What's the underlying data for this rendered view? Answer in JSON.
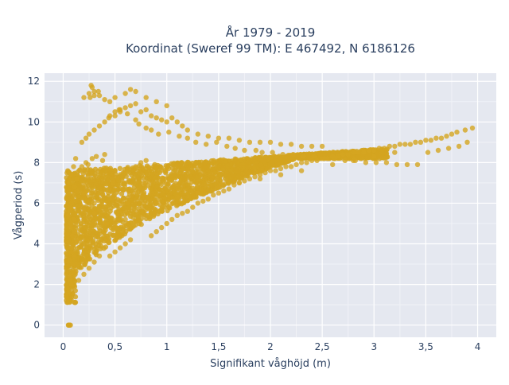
{
  "chart_data": {
    "type": "scatter",
    "title": "År 1979 - 2019",
    "subtitle": "Koordinat (Sweref 99 TM): E 467492, N 6186126",
    "xlabel": "Signifikant våghöjd (m)",
    "ylabel": "Vågperiod (s)",
    "xlim": [
      -0.18,
      4.18
    ],
    "ylim": [
      -0.6,
      12.4
    ],
    "x_ticks": [
      0,
      0.5,
      1,
      1.5,
      2,
      2.5,
      3,
      3.5,
      4
    ],
    "x_tick_labels": [
      "0",
      "0,5",
      "1",
      "1,5",
      "2",
      "2,5",
      "3",
      "3,5",
      "4"
    ],
    "y_ticks": [
      0,
      2,
      4,
      6,
      8,
      10,
      12
    ],
    "y_tick_labels": [
      "0",
      "2",
      "4",
      "6",
      "8",
      "10",
      "12"
    ],
    "grid": true,
    "legend": "none",
    "marker_color": "#D4A520",
    "background_color": "#E5E8F0",
    "series": [
      {
        "x": [
          0.05,
          0.08,
          0.1,
          0.12,
          0.06,
          0.09,
          0.03,
          0.04,
          0.07,
          0.1,
          0.12,
          0.1,
          0.08,
          0.14,
          0.11,
          0.07,
          0.05,
          0.06,
          0.09,
          0.13,
          0.06,
          0.08,
          0.1,
          0.12,
          0.09,
          0.07,
          0.1,
          0.06,
          0.08,
          0.1,
          0.11,
          0.13,
          0.09,
          0.07,
          0.15,
          0.2,
          0.25,
          0.3,
          0.35,
          0.18,
          0.22,
          0.28,
          0.32,
          0.4,
          0.16,
          0.24,
          0.38,
          0.2,
          0.3,
          0.45,
          0.5,
          0.55,
          0.6,
          0.65,
          0.48,
          0.58,
          0.7,
          0.75,
          0.8,
          0.42,
          0.52,
          0.62,
          0.68,
          0.78,
          0.85,
          0.9,
          0.95,
          1.0,
          1.05,
          1.1,
          1.15,
          1.2,
          1.25,
          1.3,
          1.35,
          1.4,
          1.45,
          1.5,
          1.55,
          1.6,
          1.65,
          1.7,
          1.75,
          1.8,
          1.85,
          1.9,
          1.95,
          2.0,
          2.05,
          2.1,
          2.15,
          2.2,
          2.25,
          2.3,
          2.35,
          2.4,
          2.45,
          2.5,
          2.55,
          2.6,
          2.65,
          2.7,
          2.75,
          2.8,
          2.85,
          2.9,
          2.95,
          3.0,
          3.05,
          3.1,
          3.15,
          3.2,
          3.25,
          3.3,
          3.35,
          3.4,
          3.45,
          3.5,
          3.55,
          3.6,
          3.65,
          3.7,
          3.75,
          3.8,
          3.88,
          3.95,
          0.18,
          0.22,
          0.25,
          0.3,
          0.35,
          0.4,
          0.45,
          0.5,
          0.55,
          0.6,
          0.65,
          0.7,
          0.75,
          0.8,
          0.85,
          0.9,
          0.95,
          1.0,
          1.05,
          1.1,
          1.15,
          1.2,
          1.3,
          1.4,
          1.5,
          1.6,
          1.7,
          1.8,
          1.9,
          2.0,
          2.1,
          2.2,
          2.3,
          2.4,
          2.5,
          0.2,
          0.25,
          0.3,
          0.35,
          0.4,
          0.45,
          0.5,
          0.55,
          0.6,
          0.65,
          0.7,
          0.8,
          0.9,
          1.0,
          0.3,
          0.4,
          0.5,
          0.6,
          0.7,
          0.9,
          1.1,
          1.3,
          1.5,
          1.7,
          1.9,
          2.1,
          2.3,
          2.6,
          2.8,
          3.0,
          3.2,
          0.05,
          0.06,
          0.07,
          0.06,
          0.05,
          0.27,
          0.28,
          0.3,
          0.34,
          0.26,
          0.44,
          0.5,
          0.54,
          0.62,
          0.7,
          0.73,
          0.8,
          0.85,
          0.92,
          1.02,
          1.12,
          1.2,
          1.28,
          1.38,
          1.48,
          1.58,
          1.66,
          1.75,
          1.86,
          1.92,
          2.02,
          2.12,
          2.22,
          2.32,
          2.42,
          2.52,
          2.62,
          2.72,
          2.82,
          2.92,
          3.02,
          3.12,
          3.22,
          3.32,
          3.42,
          3.52,
          3.62,
          3.72,
          3.82,
          3.9
        ],
        "y": [
          1.6,
          2.0,
          2.4,
          2.8,
          3.2,
          3.6,
          1.4,
          1.8,
          2.2,
          2.6,
          3.0,
          3.4,
          3.8,
          4.2,
          4.6,
          5.0,
          5.4,
          5.8,
          6.2,
          6.6,
          7.0,
          7.4,
          7.8,
          8.2,
          4.4,
          4.8,
          5.2,
          5.6,
          6.0,
          6.4,
          6.8,
          7.2,
          3.0,
          2.4,
          2.2,
          2.5,
          2.8,
          3.1,
          3.4,
          7.8,
          8.0,
          8.2,
          8.3,
          8.4,
          7.6,
          7.9,
          8.1,
          6.5,
          6.0,
          3.4,
          3.6,
          3.8,
          4.0,
          4.2,
          7.0,
          7.5,
          7.8,
          8.0,
          8.1,
          5.0,
          5.5,
          6.0,
          6.5,
          7.0,
          4.4,
          4.6,
          4.8,
          5.0,
          5.2,
          5.4,
          5.5,
          5.6,
          5.8,
          6.0,
          6.1,
          6.2,
          6.4,
          6.5,
          6.6,
          6.7,
          6.9,
          7.0,
          7.1,
          7.2,
          7.3,
          7.4,
          7.5,
          7.6,
          7.6,
          7.7,
          7.8,
          7.8,
          7.9,
          8.0,
          8.0,
          8.1,
          8.1,
          8.2,
          8.2,
          8.3,
          8.3,
          8.4,
          8.4,
          8.5,
          8.5,
          8.5,
          8.6,
          8.6,
          8.7,
          8.7,
          8.8,
          8.8,
          8.9,
          8.9,
          8.9,
          9.0,
          9.0,
          9.1,
          9.1,
          9.2,
          9.2,
          9.3,
          9.4,
          9.5,
          9.6,
          9.7,
          9.0,
          9.2,
          9.4,
          9.6,
          9.8,
          10.0,
          10.3,
          10.5,
          10.6,
          10.7,
          10.8,
          10.9,
          10.5,
          10.6,
          10.3,
          10.2,
          10.1,
          10.0,
          10.2,
          10.0,
          9.8,
          9.6,
          9.4,
          9.3,
          9.2,
          9.2,
          9.1,
          9.0,
          9.0,
          9.0,
          8.9,
          8.9,
          8.8,
          8.8,
          8.8,
          11.2,
          11.4,
          11.5,
          11.3,
          11.1,
          11.0,
          11.2,
          10.5,
          11.4,
          11.6,
          11.5,
          11.2,
          11.0,
          10.8,
          5.5,
          5.0,
          4.8,
          5.2,
          5.6,
          6.0,
          6.3,
          6.5,
          6.8,
          7.0,
          7.2,
          7.4,
          7.6,
          7.9,
          8.1,
          8.3,
          8.5,
          0.0,
          0.0,
          0.0,
          0.0,
          0.0,
          11.8,
          11.7,
          11.3,
          11.5,
          11.2,
          10.2,
          10.3,
          10.6,
          10.4,
          10.1,
          9.9,
          9.7,
          9.6,
          9.4,
          9.5,
          9.3,
          9.2,
          9.0,
          8.9,
          9.0,
          8.8,
          8.7,
          8.6,
          8.6,
          8.5,
          8.5,
          8.4,
          8.4,
          8.3,
          8.3,
          8.2,
          8.2,
          8.1,
          8.1,
          8.0,
          8.0,
          8.0,
          7.9,
          7.9,
          7.9,
          8.5,
          8.6,
          8.7,
          8.8,
          9.0
        ]
      }
    ]
  }
}
